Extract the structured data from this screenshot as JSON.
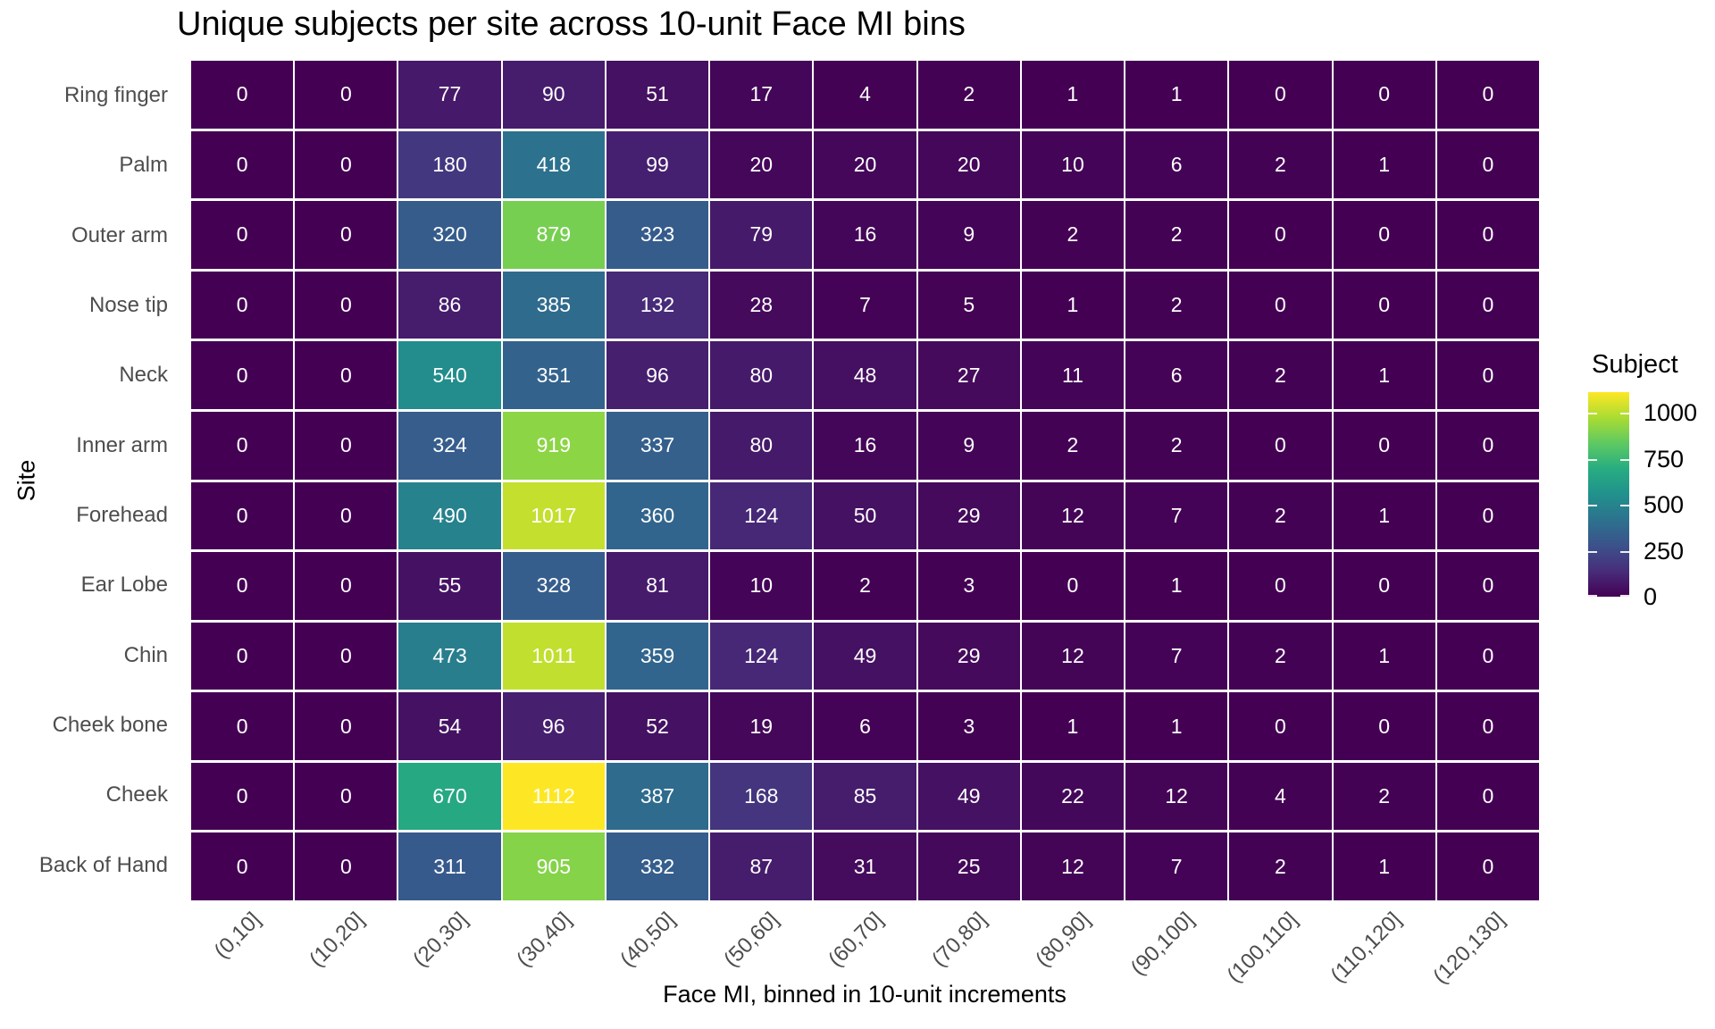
{
  "chart_data": {
    "type": "heatmap",
    "title": "Unique subjects per site across 10-unit Face MI bins",
    "xlabel": "Face MI, binned in 10-unit increments",
    "ylabel": "Site",
    "x_categories": [
      "(0,10]",
      "(10,20]",
      "(20,30]",
      "(30,40]",
      "(40,50]",
      "(50,60]",
      "(60,70]",
      "(70,80]",
      "(80,90]",
      "(90,100]",
      "(100,110]",
      "(110,120]",
      "(120,130]"
    ],
    "y_categories_top_to_bottom": [
      "Ring finger",
      "Palm",
      "Outer arm",
      "Nose tip",
      "Neck",
      "Inner arm",
      "Forehead",
      "Ear Lobe",
      "Chin",
      "Cheek bone",
      "Cheek",
      "Back of Hand"
    ],
    "values": [
      [
        0,
        0,
        77,
        90,
        51,
        17,
        4,
        2,
        1,
        1,
        0,
        0,
        0
      ],
      [
        0,
        0,
        180,
        418,
        99,
        20,
        20,
        20,
        10,
        6,
        2,
        1,
        0
      ],
      [
        0,
        0,
        320,
        879,
        323,
        79,
        16,
        9,
        2,
        2,
        0,
        0,
        0
      ],
      [
        0,
        0,
        86,
        385,
        132,
        28,
        7,
        5,
        1,
        2,
        0,
        0,
        0
      ],
      [
        0,
        0,
        540,
        351,
        96,
        80,
        48,
        27,
        11,
        6,
        2,
        1,
        0
      ],
      [
        0,
        0,
        324,
        919,
        337,
        80,
        16,
        9,
        2,
        2,
        0,
        0,
        0
      ],
      [
        0,
        0,
        490,
        1017,
        360,
        124,
        50,
        29,
        12,
        7,
        2,
        1,
        0
      ],
      [
        0,
        0,
        55,
        328,
        81,
        10,
        2,
        3,
        0,
        1,
        0,
        0,
        0
      ],
      [
        0,
        0,
        473,
        1011,
        359,
        124,
        49,
        29,
        12,
        7,
        2,
        1,
        0
      ],
      [
        0,
        0,
        54,
        96,
        52,
        19,
        6,
        3,
        1,
        1,
        0,
        0,
        0
      ],
      [
        0,
        0,
        670,
        1112,
        387,
        168,
        85,
        49,
        22,
        12,
        4,
        2,
        0
      ],
      [
        0,
        0,
        311,
        905,
        332,
        87,
        31,
        25,
        12,
        7,
        2,
        1,
        0
      ]
    ],
    "legend": {
      "title": "Subject",
      "ticks": [
        1000,
        750,
        500,
        250,
        0
      ],
      "vmin": 0,
      "vmax": 1112,
      "position": "right"
    },
    "grid": "white gridlines between tiles",
    "colors": {
      "viridis_stops": [
        "#440154",
        "#472d7b",
        "#3b528b",
        "#2c728e",
        "#21918c",
        "#27ad81",
        "#5ec962",
        "#aadc32",
        "#fde725"
      ],
      "cell_text": "#ffffff",
      "axis_text": "#4d4d4d",
      "title_text": "#000000",
      "grid": "#ffffff"
    }
  }
}
